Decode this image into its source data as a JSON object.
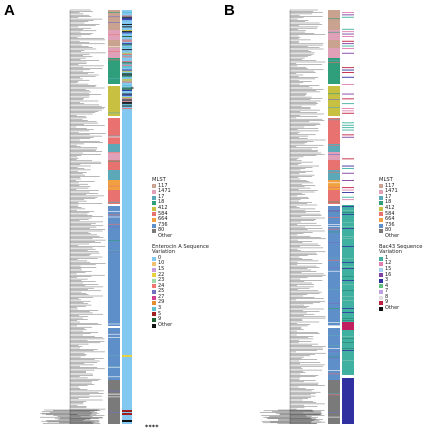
{
  "panels": [
    {
      "letter": "A",
      "legend_groups": [
        {
          "title": "MLST",
          "items": [
            {
              "label": "117",
              "color": "#c9a38f"
            },
            {
              "label": "1471",
              "color": "#e0a0b8"
            },
            {
              "label": "17",
              "color": "#5aa8b8"
            },
            {
              "label": "18",
              "color": "#2f9e7a"
            },
            {
              "label": "412",
              "color": "#c8c040"
            },
            {
              "label": "584",
              "color": "#e87270"
            },
            {
              "label": "664",
              "color": "#f0a040"
            },
            {
              "label": "736",
              "color": "#5f8fc8"
            },
            {
              "label": "80",
              "color": "#7a7a7a"
            },
            {
              "label": "Other",
              "color": "#ffffff"
            }
          ]
        },
        {
          "title": "Enterocin A Sequence Variation",
          "items": [
            {
              "label": "0",
              "color": "#82c8f0"
            },
            {
              "label": "10",
              "color": "#f4c070"
            },
            {
              "label": "15",
              "color": "#c89ad8"
            },
            {
              "label": "22",
              "color": "#e8d040"
            },
            {
              "label": "23",
              "color": "#a0d8a8"
            },
            {
              "label": "24",
              "color": "#f07870"
            },
            {
              "label": "25",
              "color": "#7070c0"
            },
            {
              "label": "27",
              "color": "#d04090"
            },
            {
              "label": "29",
              "color": "#e09030"
            },
            {
              "label": "3",
              "color": "#60c0d0"
            },
            {
              "label": "5",
              "color": "#a02020"
            },
            {
              "label": "9",
              "color": "#206030"
            },
            {
              "label": "Other",
              "color": "#111111"
            }
          ]
        }
      ],
      "marker": "*",
      "stars": "****"
    },
    {
      "letter": "B",
      "legend_groups": [
        {
          "title": "MLST",
          "items": [
            {
              "label": "117",
              "color": "#c9a38f"
            },
            {
              "label": "1471",
              "color": "#e0a0b8"
            },
            {
              "label": "17",
              "color": "#5aa8b8"
            },
            {
              "label": "18",
              "color": "#2f9e7a"
            },
            {
              "label": "412",
              "color": "#c8c040"
            },
            {
              "label": "584",
              "color": "#e87270"
            },
            {
              "label": "664",
              "color": "#f0a040"
            },
            {
              "label": "736",
              "color": "#5f8fc8"
            },
            {
              "label": "80",
              "color": "#7a7a7a"
            },
            {
              "label": "Other",
              "color": "#ffffff"
            }
          ]
        },
        {
          "title": "Bac43 Sequence Variation",
          "items": [
            {
              "label": "1",
              "color": "#40b0a0"
            },
            {
              "label": "12",
              "color": "#e080b0"
            },
            {
              "label": "15",
              "color": "#a8d0f0"
            },
            {
              "label": "16",
              "color": "#8040a0"
            },
            {
              "label": "3",
              "color": "#3030a0"
            },
            {
              "label": "4",
              "color": "#60c080"
            },
            {
              "label": "7",
              "color": "#c0a0e0"
            },
            {
              "label": "8",
              "color": "#e0e0e0"
            },
            {
              "label": "9",
              "color": "#c02040"
            },
            {
              "label": "Other",
              "color": "#111111"
            }
          ]
        }
      ]
    }
  ]
}
